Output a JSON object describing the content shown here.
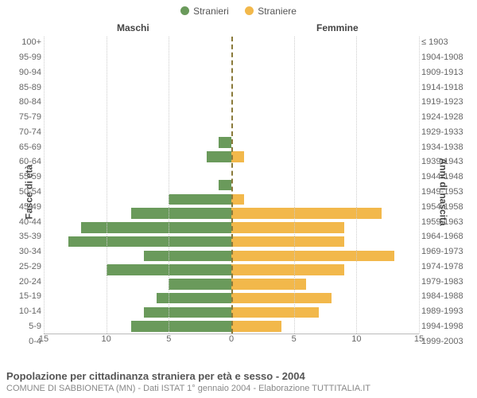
{
  "legend": {
    "items": [
      {
        "label": "Stranieri",
        "color": "#6a9a5b"
      },
      {
        "label": "Straniere",
        "color": "#f2b84b"
      }
    ]
  },
  "headers": {
    "left": "Maschi",
    "right": "Femmine"
  },
  "axis": {
    "left_title": "Fasce di età",
    "right_title": "Anni di nascita",
    "xmax": 15,
    "xticks": [
      15,
      10,
      5,
      0,
      5,
      10,
      15
    ]
  },
  "colors": {
    "male": "#6a9a5b",
    "female": "#f2b84b",
    "grid": "#cccccc",
    "center_line": "#8a7a3a",
    "background": "#ffffff",
    "text": "#555555"
  },
  "rows": [
    {
      "age": "100+",
      "birth": "≤ 1903",
      "m": 0,
      "f": 0
    },
    {
      "age": "95-99",
      "birth": "1904-1908",
      "m": 0,
      "f": 0
    },
    {
      "age": "90-94",
      "birth": "1909-1913",
      "m": 0,
      "f": 0
    },
    {
      "age": "85-89",
      "birth": "1914-1918",
      "m": 0,
      "f": 0
    },
    {
      "age": "80-84",
      "birth": "1919-1923",
      "m": 0,
      "f": 0
    },
    {
      "age": "75-79",
      "birth": "1924-1928",
      "m": 0,
      "f": 0
    },
    {
      "age": "70-74",
      "birth": "1929-1933",
      "m": 0,
      "f": 0
    },
    {
      "age": "65-69",
      "birth": "1934-1938",
      "m": 1,
      "f": 0
    },
    {
      "age": "60-64",
      "birth": "1939-1943",
      "m": 2,
      "f": 1
    },
    {
      "age": "55-59",
      "birth": "1944-1948",
      "m": 0,
      "f": 0
    },
    {
      "age": "50-54",
      "birth": "1949-1953",
      "m": 1,
      "f": 0
    },
    {
      "age": "45-49",
      "birth": "1954-1958",
      "m": 5,
      "f": 1
    },
    {
      "age": "40-44",
      "birth": "1959-1963",
      "m": 8,
      "f": 12
    },
    {
      "age": "35-39",
      "birth": "1964-1968",
      "m": 12,
      "f": 9
    },
    {
      "age": "30-34",
      "birth": "1969-1973",
      "m": 13,
      "f": 9
    },
    {
      "age": "25-29",
      "birth": "1974-1978",
      "m": 7,
      "f": 13
    },
    {
      "age": "20-24",
      "birth": "1979-1983",
      "m": 10,
      "f": 9
    },
    {
      "age": "15-19",
      "birth": "1984-1988",
      "m": 5,
      "f": 6
    },
    {
      "age": "10-14",
      "birth": "1989-1993",
      "m": 6,
      "f": 8
    },
    {
      "age": "5-9",
      "birth": "1994-1998",
      "m": 7,
      "f": 7
    },
    {
      "age": "0-4",
      "birth": "1999-2003",
      "m": 8,
      "f": 4
    }
  ],
  "footer": {
    "title": "Popolazione per cittadinanza straniera per età e sesso - 2004",
    "subtitle": "COMUNE DI SABBIONETA (MN) - Dati ISTAT 1° gennaio 2004 - Elaborazione TUTTITALIA.IT"
  },
  "chart_type": "population-pyramid"
}
